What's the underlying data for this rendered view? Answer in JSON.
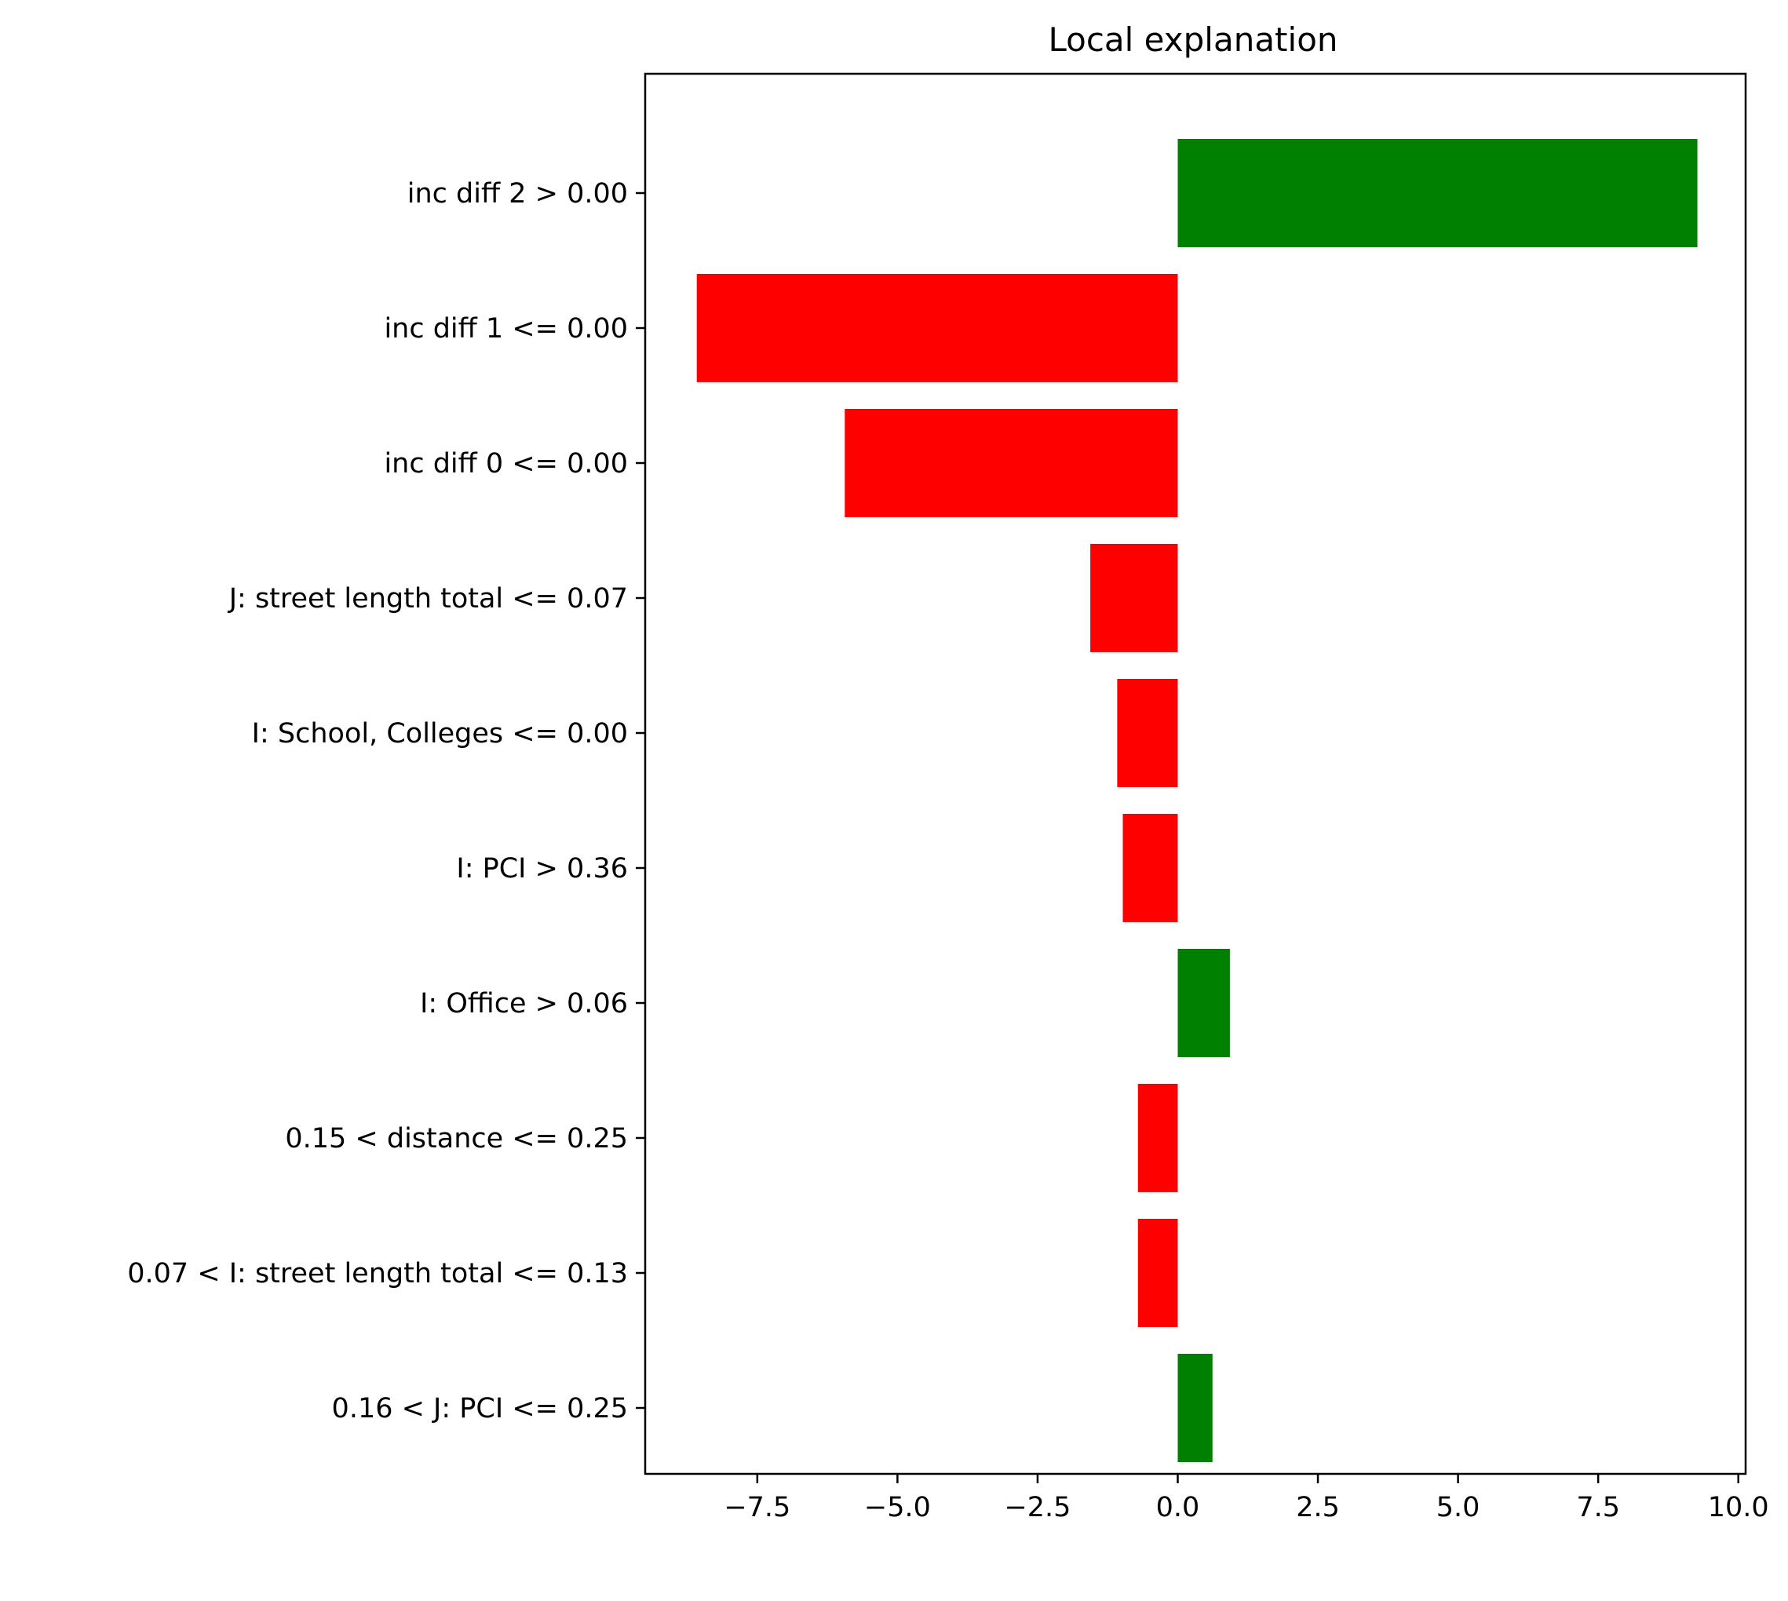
{
  "chart_data": {
    "type": "bar",
    "orientation": "horizontal",
    "title": "Local explanation",
    "xlabel": "",
    "ylabel": "",
    "categories": [
      "inc diff 2 > 0.00",
      "inc diff 1 <= 0.00",
      "inc diff 0 <= 0.00",
      "J: street length total <= 0.07",
      "I: School, Colleges <= 0.00",
      "I: PCI > 0.36",
      "I: Office > 0.06",
      "0.15 < distance <= 0.25",
      "0.07 < I: street length total <= 0.13",
      "0.16 < J: PCI <= 0.25"
    ],
    "values": [
      9.27,
      -8.58,
      -5.94,
      -1.56,
      -1.08,
      -0.98,
      0.93,
      -0.71,
      -0.71,
      0.62
    ],
    "xlim": [
      -9.5,
      10.13
    ],
    "xticks": [
      -7.5,
      -5.0,
      -2.5,
      0.0,
      2.5,
      5.0,
      7.5,
      10.0
    ],
    "xtick_labels": [
      "−7.5",
      "−5.0",
      "−2.5",
      "0.0",
      "2.5",
      "5.0",
      "7.5",
      "10.0"
    ],
    "colors": {
      "positive": "#008000",
      "negative": "#ff0000",
      "axis": "#000000"
    },
    "grid": false,
    "legend": "none"
  }
}
